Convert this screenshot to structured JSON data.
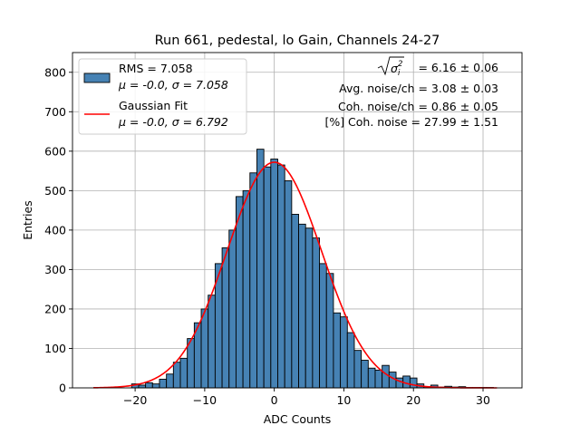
{
  "chart_data": {
    "type": "histogram",
    "title": "Run 661, pedestal, lo Gain, Channels 24-27",
    "xlabel": "ADC Counts",
    "ylabel": "Entries",
    "xlim": [
      -29,
      35.6
    ],
    "ylim": [
      0,
      850
    ],
    "xticks": [
      -20,
      -10,
      0,
      10,
      20,
      30
    ],
    "xtick_labels": [
      "−20",
      "−10",
      "0",
      "10",
      "20",
      "30"
    ],
    "yticks": [
      0,
      100,
      200,
      300,
      400,
      500,
      600,
      700,
      800
    ],
    "ytick_labels": [
      "0",
      "100",
      "200",
      "300",
      "400",
      "500",
      "600",
      "700",
      "800"
    ],
    "grid": true,
    "legend_position": "top-left",
    "bin_width": 1,
    "bins": [
      {
        "x": -20,
        "count": 10
      },
      {
        "x": -19,
        "count": 7
      },
      {
        "x": -18,
        "count": 13
      },
      {
        "x": -17,
        "count": 10
      },
      {
        "x": -16,
        "count": 22
      },
      {
        "x": -15,
        "count": 35
      },
      {
        "x": -14,
        "count": 65
      },
      {
        "x": -13,
        "count": 75
      },
      {
        "x": -12,
        "count": 125
      },
      {
        "x": -11,
        "count": 165
      },
      {
        "x": -10,
        "count": 200
      },
      {
        "x": -9,
        "count": 235
      },
      {
        "x": -8,
        "count": 315
      },
      {
        "x": -7,
        "count": 355
      },
      {
        "x": -6,
        "count": 400
      },
      {
        "x": -5,
        "count": 485
      },
      {
        "x": -4,
        "count": 500
      },
      {
        "x": -3,
        "count": 545
      },
      {
        "x": -2,
        "count": 605
      },
      {
        "x": -1,
        "count": 560
      },
      {
        "x": 0,
        "count": 580
      },
      {
        "x": 1,
        "count": 565
      },
      {
        "x": 2,
        "count": 525
      },
      {
        "x": 3,
        "count": 440
      },
      {
        "x": 4,
        "count": 415
      },
      {
        "x": 5,
        "count": 405
      },
      {
        "x": 6,
        "count": 380
      },
      {
        "x": 7,
        "count": 315
      },
      {
        "x": 8,
        "count": 290
      },
      {
        "x": 9,
        "count": 190
      },
      {
        "x": 10,
        "count": 180
      },
      {
        "x": 11,
        "count": 140
      },
      {
        "x": 12,
        "count": 95
      },
      {
        "x": 13,
        "count": 70
      },
      {
        "x": 14,
        "count": 50
      },
      {
        "x": 15,
        "count": 45
      },
      {
        "x": 16,
        "count": 57
      },
      {
        "x": 17,
        "count": 40
      },
      {
        "x": 18,
        "count": 25
      },
      {
        "x": 19,
        "count": 30
      },
      {
        "x": 20,
        "count": 25
      },
      {
        "x": 21,
        "count": 10
      },
      {
        "x": 22,
        "count": 3
      },
      {
        "x": 23,
        "count": 7
      },
      {
        "x": 24,
        "count": 2
      },
      {
        "x": 25,
        "count": 4
      },
      {
        "x": 26,
        "count": 2
      },
      {
        "x": 27,
        "count": 3
      },
      {
        "x": 28,
        "count": 1
      },
      {
        "x": 29,
        "count": 1
      },
      {
        "x": 30,
        "count": 1
      },
      {
        "x": 31,
        "count": 1
      }
    ],
    "gaussian_fit": {
      "mu": 0.0,
      "sigma": 6.792,
      "amplitude": 572,
      "x_range": [
        -26,
        32
      ]
    },
    "legend": [
      {
        "line1": "RMS = 7.058",
        "line2": "μ = -0.0, σ = 7.058",
        "color": "#4682b4",
        "style": "patch"
      },
      {
        "line1": "Gaussian Fit",
        "line2": "μ = -0.0, σ = 6.792",
        "color": "#ff0000",
        "style": "line"
      }
    ],
    "annotations": {
      "sigma_total_value": " = 6.16 ± 0.06",
      "avg_noise": "Avg. noise/ch = 3.08 ± 0.03",
      "coh_noise": "Coh. noise/ch = 0.86 ± 0.05",
      "coh_noise_pct": "[%] Coh. noise = 27.99 ± 1.51"
    },
    "colors": {
      "bar_fill": "#4682b4",
      "bar_edge": "#000000",
      "fit_line": "#ff0000",
      "grid": "#b0b0b0"
    }
  }
}
